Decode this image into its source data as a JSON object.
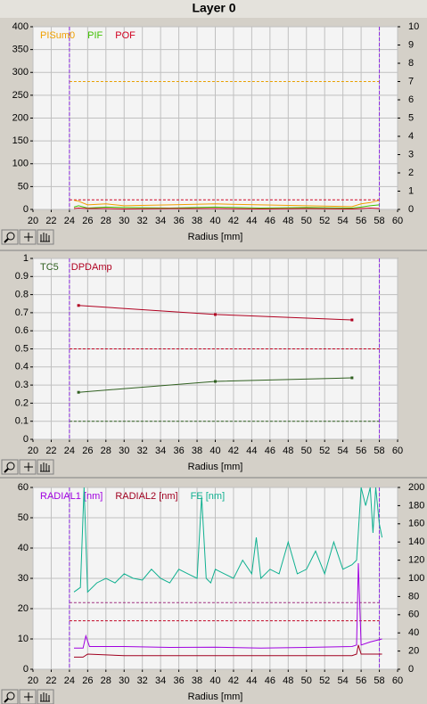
{
  "title": "Layer 0",
  "chart_data": [
    {
      "type": "line",
      "xlabel": "Radius [mm]",
      "xlim": [
        20,
        60
      ],
      "xticks": [
        20,
        22,
        24,
        26,
        28,
        30,
        32,
        34,
        36,
        38,
        40,
        42,
        44,
        46,
        48,
        50,
        52,
        54,
        56,
        58,
        60
      ],
      "ylim": [
        0,
        400
      ],
      "yticks": [
        0,
        50,
        100,
        150,
        200,
        250,
        300,
        350,
        400
      ],
      "y2lim": [
        0,
        10
      ],
      "y2ticks": [
        0,
        1,
        2,
        3,
        4,
        5,
        6,
        7,
        8,
        9,
        10
      ],
      "grid": true,
      "x_markers": [
        24,
        58
      ],
      "marker_color": "#8a2be2",
      "thresholds": [
        {
          "value": 280,
          "color": "#e8a000"
        },
        {
          "value": 21,
          "color": "#d00020"
        }
      ],
      "series": [
        {
          "name": "PISum0",
          "color": "#f0a000",
          "x": [
            24.5,
            25,
            26,
            28,
            30,
            35,
            40,
            45,
            50,
            55,
            56,
            57,
            58
          ],
          "values": [
            20,
            18,
            10,
            12,
            8,
            10,
            12,
            10,
            8,
            6,
            12,
            15,
            20
          ]
        },
        {
          "name": "PIF",
          "color": "#40c000",
          "x": [
            24.5,
            25,
            26,
            28,
            30,
            35,
            40,
            45,
            50,
            55,
            56,
            57,
            58
          ],
          "values": [
            5,
            8,
            3,
            5,
            4,
            3,
            5,
            3,
            4,
            3,
            5,
            8,
            10
          ]
        },
        {
          "name": "POF",
          "color": "#d00020",
          "x": [
            24.5,
            25,
            26,
            28,
            30,
            35,
            40,
            45,
            50,
            55,
            56,
            57,
            58
          ],
          "values": [
            2,
            3,
            2,
            2,
            1,
            2,
            2,
            1,
            2,
            1,
            2,
            3,
            2
          ]
        }
      ]
    },
    {
      "type": "line",
      "xlabel": "Radius [mm]",
      "xlim": [
        20,
        60
      ],
      "xticks": [
        20,
        22,
        24,
        26,
        28,
        30,
        32,
        34,
        36,
        38,
        40,
        42,
        44,
        46,
        48,
        50,
        52,
        54,
        56,
        58,
        60
      ],
      "ylim": [
        0,
        1
      ],
      "yticks": [
        0,
        0.1,
        0.2,
        0.3,
        0.4,
        0.5,
        0.6,
        0.7,
        0.8,
        0.9,
        1
      ],
      "grid": true,
      "x_markers": [
        24,
        58
      ],
      "marker_color": "#8a2be2",
      "thresholds": [
        {
          "value": 0.5,
          "color": "#c00020"
        },
        {
          "value": 0.1,
          "color": "#306020"
        }
      ],
      "series": [
        {
          "name": "TC5",
          "color": "#306020",
          "x": [
            25,
            40,
            55
          ],
          "values": [
            0.26,
            0.32,
            0.34
          ],
          "points": true
        },
        {
          "name": "DPDAmp",
          "color": "#b00020",
          "x": [
            25,
            40,
            55
          ],
          "values": [
            0.74,
            0.69,
            0.66
          ],
          "points": true
        }
      ]
    },
    {
      "type": "line",
      "xlabel": "Radius [mm]",
      "xlim": [
        20,
        60
      ],
      "xticks": [
        20,
        22,
        24,
        26,
        28,
        30,
        32,
        34,
        36,
        38,
        40,
        42,
        44,
        46,
        48,
        50,
        52,
        54,
        56,
        58,
        60
      ],
      "ylim": [
        0,
        60
      ],
      "yticks": [
        0,
        10,
        20,
        30,
        40,
        50,
        60
      ],
      "y2lim": [
        0,
        200
      ],
      "y2ticks": [
        0,
        20,
        40,
        60,
        80,
        100,
        120,
        140,
        160,
        180,
        200
      ],
      "grid": true,
      "x_markers": [
        24,
        58
      ],
      "marker_color": "#8a2be2",
      "thresholds": [
        {
          "value": 22,
          "color": "#a03080"
        },
        {
          "value": 16,
          "color": "#c00020"
        }
      ],
      "series": [
        {
          "name": "RADIAL1 [nm]",
          "color": "#a000e0",
          "x": [
            24.5,
            25.5,
            25.8,
            26.2,
            30,
            35,
            40,
            45,
            50,
            55,
            55.5,
            55.7,
            56,
            57,
            58.3
          ],
          "values": [
            7,
            7,
            11,
            7.5,
            7.5,
            7.2,
            7.3,
            7,
            7.2,
            7.5,
            8,
            35,
            8,
            9,
            10
          ]
        },
        {
          "name": "RADIAL2 [nm]",
          "color": "#a00020",
          "x": [
            24.5,
            25.5,
            26,
            30,
            40,
            50,
            55,
            55.5,
            55.7,
            56,
            58.3
          ],
          "values": [
            4,
            4,
            5,
            4.5,
            4.5,
            4.5,
            4.5,
            5,
            8,
            5,
            5
          ]
        },
        {
          "name": "FE [nm]",
          "color": "#10b090",
          "axis": "y2",
          "x": [
            24.5,
            25.2,
            25.6,
            26,
            27,
            28,
            29,
            30,
            31,
            32,
            33,
            34,
            35,
            36,
            37,
            38,
            38.5,
            39,
            39.5,
            40,
            41,
            42,
            43,
            44,
            44.5,
            45,
            46,
            47,
            48,
            49,
            50,
            51,
            52,
            53,
            54,
            55,
            55.5,
            56,
            56.5,
            57,
            57.3,
            57.6,
            58,
            58.3
          ],
          "values": [
            85,
            90,
            200,
            85,
            95,
            100,
            95,
            105,
            100,
            98,
            110,
            100,
            95,
            110,
            105,
            100,
            190,
            100,
            95,
            110,
            105,
            100,
            120,
            105,
            145,
            100,
            110,
            105,
            140,
            105,
            110,
            130,
            105,
            140,
            110,
            115,
            120,
            200,
            180,
            200,
            150,
            200,
            160,
            145
          ]
        }
      ]
    }
  ]
}
